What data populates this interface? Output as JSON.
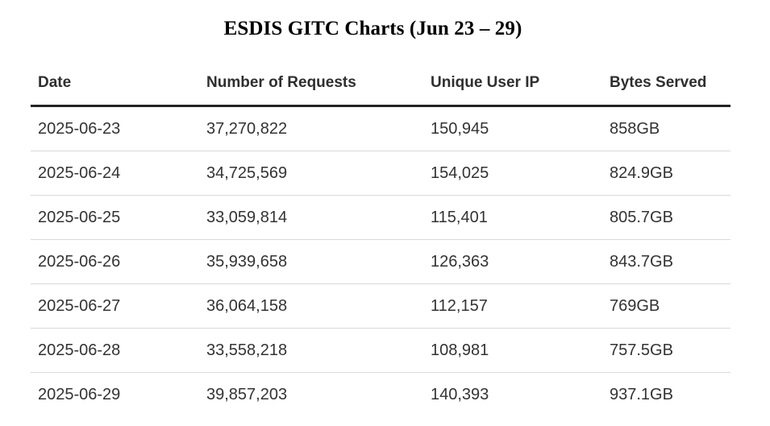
{
  "title": "ESDIS GITC Charts (Jun 23 – 29)",
  "table": {
    "headers": [
      "Date",
      "Number of Requests",
      "Unique User IP",
      "Bytes Served"
    ],
    "rows": [
      [
        "2025-06-23",
        "37,270,822",
        "150,945",
        "858GB"
      ],
      [
        "2025-06-24",
        "34,725,569",
        "154,025",
        "824.9GB"
      ],
      [
        "2025-06-25",
        "33,059,814",
        "115,401",
        "805.7GB"
      ],
      [
        "2025-06-26",
        "35,939,658",
        "126,363",
        "843.7GB"
      ],
      [
        "2025-06-27",
        "36,064,158",
        "112,157",
        "769GB"
      ],
      [
        "2025-06-28",
        "33,558,218",
        "108,981",
        "757.5GB"
      ],
      [
        "2025-06-29",
        "39,857,203",
        "140,393",
        "937.1GB"
      ]
    ]
  }
}
